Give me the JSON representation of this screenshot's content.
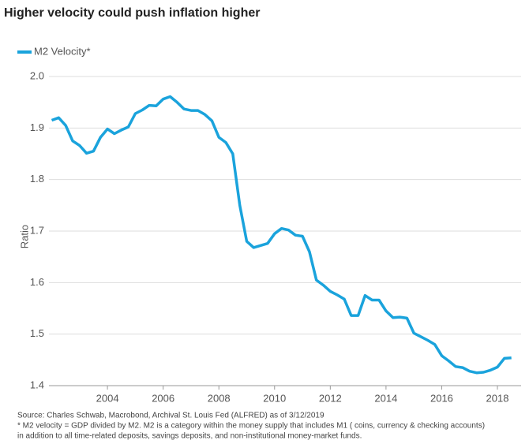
{
  "chart_data": {
    "type": "line",
    "title": "Higher velocity could push inflation higher",
    "y_label": "Ratio",
    "notes": [
      "Source: Charles Schwab, Macrobond, Archival St. Louis Fed (ALFRED) as of 3/12/2019",
      "* M2 velocity = GDP divided by M2. M2 is a category within the money supply that includes M1 ( coins, currency & checking accounts)",
      "in addition to all time-related deposits, savings deposits, and non-institutional money-market funds."
    ],
    "x": [
      2002.0,
      2002.25,
      2002.5,
      2002.75,
      2003.0,
      2003.25,
      2003.5,
      2003.75,
      2004.0,
      2004.25,
      2004.5,
      2004.75,
      2005.0,
      2005.25,
      2005.5,
      2005.75,
      2006.0,
      2006.25,
      2006.5,
      2006.75,
      2007.0,
      2007.25,
      2007.5,
      2007.75,
      2008.0,
      2008.25,
      2008.5,
      2008.75,
      2009.0,
      2009.25,
      2009.5,
      2009.75,
      2010.0,
      2010.25,
      2010.5,
      2010.75,
      2011.0,
      2011.25,
      2011.5,
      2011.75,
      2012.0,
      2012.25,
      2012.5,
      2012.75,
      2013.0,
      2013.25,
      2013.5,
      2013.75,
      2014.0,
      2014.25,
      2014.5,
      2014.75,
      2015.0,
      2015.25,
      2015.5,
      2015.75,
      2016.0,
      2016.25,
      2016.5,
      2016.75,
      2017.0,
      2017.25,
      2017.5,
      2017.75,
      2018.0,
      2018.25,
      2018.5
    ],
    "series": [
      {
        "name": "M2 Velocity*",
        "color": "#1aa3dc",
        "values": [
          1.915,
          1.92,
          1.905,
          1.875,
          1.866,
          1.851,
          1.855,
          1.882,
          1.898,
          1.889,
          1.896,
          1.902,
          1.928,
          1.935,
          1.944,
          1.943,
          1.956,
          1.961,
          1.95,
          1.937,
          1.934,
          1.934,
          1.926,
          1.914,
          1.882,
          1.872,
          1.85,
          1.75,
          1.68,
          1.668,
          1.672,
          1.676,
          1.695,
          1.705,
          1.702,
          1.692,
          1.69,
          1.66,
          1.605,
          1.595,
          1.583,
          1.576,
          1.568,
          1.536,
          1.536,
          1.575,
          1.566,
          1.566,
          1.545,
          1.532,
          1.533,
          1.531,
          1.502,
          1.495,
          1.488,
          1.48,
          1.458,
          1.448,
          1.437,
          1.435,
          1.428,
          1.425,
          1.426,
          1.43,
          1.436,
          1.453,
          1.454
        ]
      }
    ],
    "xlim": [
      2001.9,
      2018.85
    ],
    "xticks": [
      2004,
      2006,
      2008,
      2010,
      2012,
      2014,
      2016,
      2018
    ],
    "ylim": [
      1.4,
      2.0
    ],
    "yticks": [
      1.4,
      1.5,
      1.6,
      1.7,
      1.8,
      1.9,
      {
        "value": 2,
        "label": "2.0"
      }
    ],
    "grid": true,
    "legend": "top-left"
  }
}
